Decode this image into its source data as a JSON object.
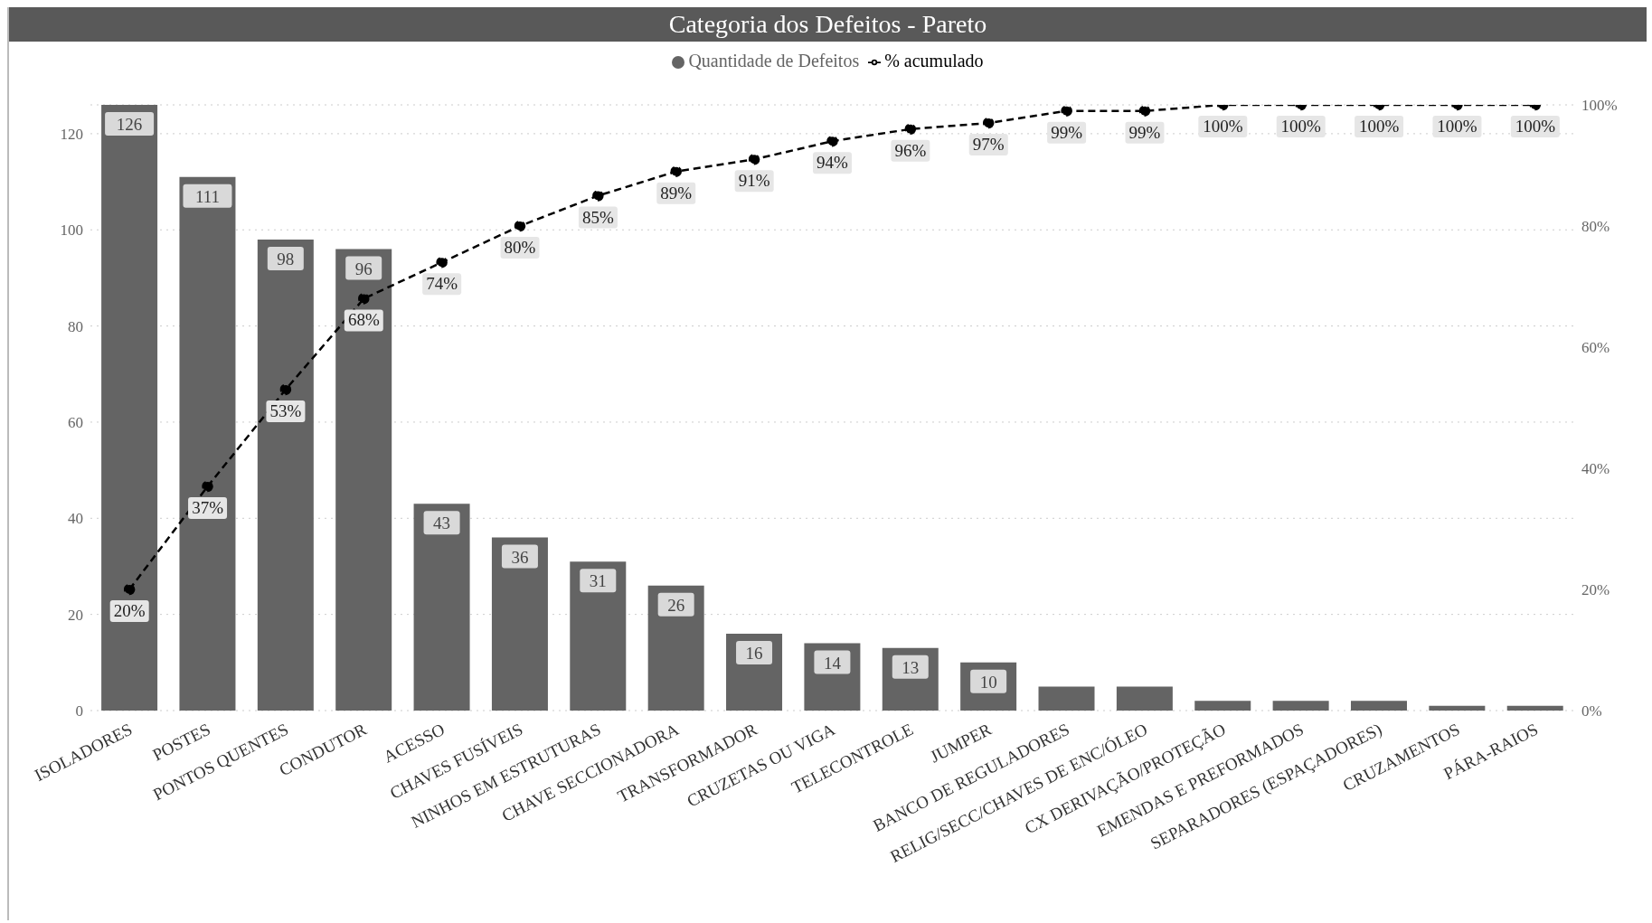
{
  "chart_data": {
    "type": "bar",
    "title": "Categoria dos Defeitos - Pareto",
    "categories": [
      "ISOLADORES",
      "POSTES",
      "PONTOS QUENTES",
      "CONDUTOR",
      "ACESSO",
      "CHAVES FUSÍVEIS",
      "NINHOS EM ESTRUTURAS",
      "CHAVE SECCIONADORA",
      "TRANSFORMADOR",
      "CRUZETAS OU VIGA",
      "TELECONTROLE",
      "JUMPER",
      "BANCO DE REGULADORES",
      "RELIG/SECC/CHAVES DE ENC/ÓLEO",
      "CX DERIVAÇÃO/PROTEÇÃO",
      "EMENDAS E PREFORMADOS",
      "SEPARADORES (ESPAÇADORES)",
      "CRUZAMENTOS",
      "PÁRA-RAIOS"
    ],
    "series": [
      {
        "name": "Quantidade de Defeitos",
        "color": "#646464",
        "values": [
          126,
          111,
          98,
          96,
          43,
          36,
          31,
          26,
          16,
          14,
          13,
          10,
          5,
          5,
          2,
          2,
          2,
          1,
          1
        ],
        "value_labels": [
          "126",
          "111",
          "98",
          "96",
          "43",
          "36",
          "31",
          "26",
          "16",
          "14",
          "13",
          "10",
          null,
          null,
          null,
          null,
          null,
          null,
          null
        ]
      },
      {
        "name": "% acumulado",
        "type": "line",
        "axis": "y2",
        "color": "#000000",
        "line_style": "dashed",
        "marker": "circle",
        "values": [
          20,
          37,
          53,
          68,
          74,
          80,
          85,
          89,
          91,
          94,
          96,
          97,
          99,
          99,
          100,
          100,
          100,
          100,
          100
        ],
        "value_labels": [
          "20%",
          "37%",
          "53%",
          "68%",
          "74%",
          "80%",
          "85%",
          "89%",
          "91%",
          "94%",
          "96%",
          "97%",
          "99%",
          "99%",
          "100%",
          "100%",
          "100%",
          "100%",
          "100%"
        ]
      }
    ],
    "ylim": [
      0,
      126
    ],
    "yticks": [
      0,
      20,
      40,
      60,
      80,
      100,
      120
    ],
    "y2lim": [
      0,
      100
    ],
    "y2ticks": [
      {
        "value": 0,
        "label": "0%"
      },
      {
        "value": 20,
        "label": "20%"
      },
      {
        "value": 40,
        "label": "40%"
      },
      {
        "value": 60,
        "label": "60%"
      },
      {
        "value": 80,
        "label": "80%"
      },
      {
        "value": 100,
        "label": "100%"
      }
    ],
    "grid": "y",
    "legend": "top"
  }
}
